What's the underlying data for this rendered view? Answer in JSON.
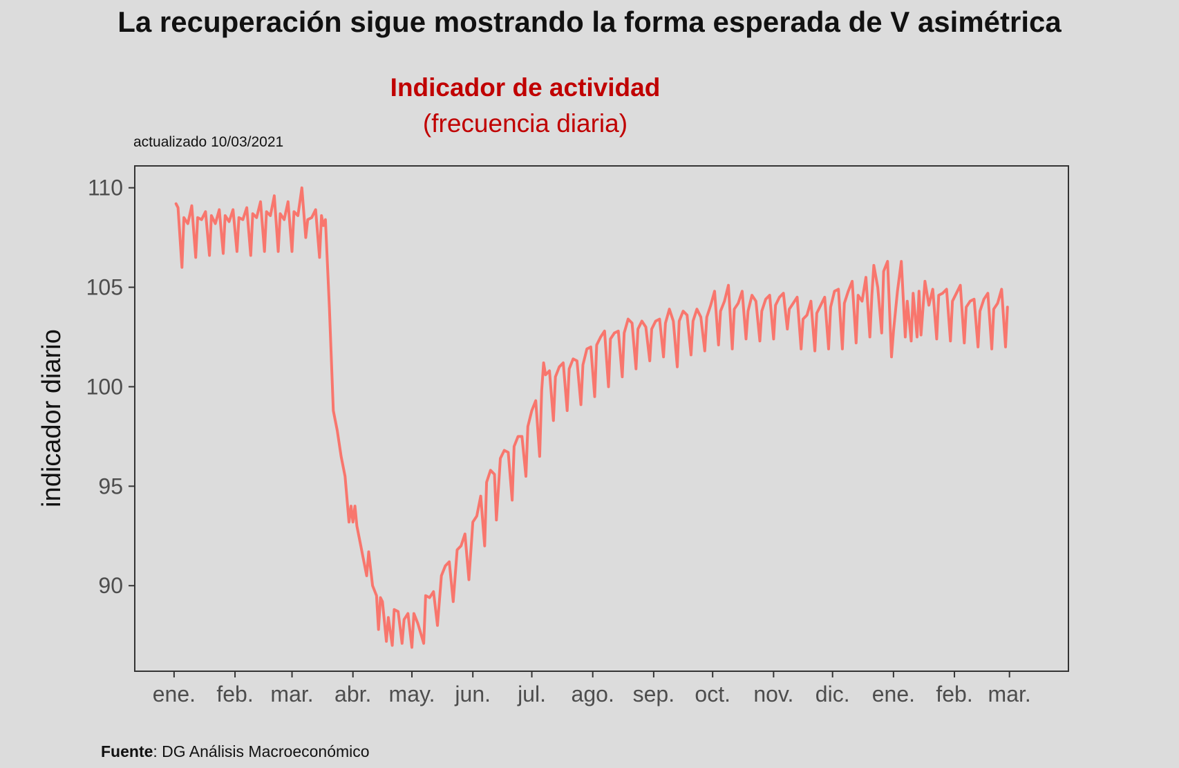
{
  "header": {
    "title": "La recuperación sigue mostrando la forma esperada de V asimétrica"
  },
  "footer": {
    "source_label": "Fuente",
    "source_text": ": DG Análisis Macroeconómico"
  },
  "chart_data": {
    "type": "line",
    "title": "Indicador de actividad",
    "subtitle": "(frecuencia diaria)",
    "note": "actualizado 10/03/2021",
    "xlabel": "",
    "ylabel": "indicador diario",
    "ylim": [
      85.7,
      111.1
    ],
    "yticks": [
      90,
      95,
      100,
      105,
      110
    ],
    "x_ticks": [
      "ene.",
      "feb.",
      "mar.",
      "abr.",
      "may.",
      "jun.",
      "jul.",
      "ago.",
      "sep.",
      "oct.",
      "nov.",
      "dic.",
      "ene.",
      "feb.",
      "mar."
    ],
    "x_tick_dates": [
      "2020-01-01",
      "2020-02-01",
      "2020-03-01",
      "2020-04-01",
      "2020-05-01",
      "2020-06-01",
      "2020-07-01",
      "2020-08-01",
      "2020-09-01",
      "2020-10-01",
      "2020-11-01",
      "2020-12-01",
      "2021-01-01",
      "2021-02-01",
      "2021-03-01"
    ],
    "xlim": [
      "2019-12-12",
      "2021-03-31"
    ],
    "grid": false,
    "legend": "none",
    "colors": {
      "line": "#f8766d",
      "title": "#c00000"
    },
    "series": [
      {
        "values": [
          [
            "2020-01-02",
            109.2
          ],
          [
            "2020-01-03",
            109.0
          ],
          [
            "2020-01-05",
            106.0
          ],
          [
            "2020-01-06",
            108.5
          ],
          [
            "2020-01-08",
            108.2
          ],
          [
            "2020-01-10",
            109.1
          ],
          [
            "2020-01-12",
            106.5
          ],
          [
            "2020-01-13",
            108.5
          ],
          [
            "2020-01-15",
            108.4
          ],
          [
            "2020-01-17",
            108.8
          ],
          [
            "2020-01-19",
            106.6
          ],
          [
            "2020-01-20",
            108.6
          ],
          [
            "2020-01-22",
            108.2
          ],
          [
            "2020-01-24",
            108.9
          ],
          [
            "2020-01-26",
            106.7
          ],
          [
            "2020-01-27",
            108.6
          ],
          [
            "2020-01-29",
            108.3
          ],
          [
            "2020-01-31",
            108.9
          ],
          [
            "2020-02-02",
            106.8
          ],
          [
            "2020-02-03",
            108.5
          ],
          [
            "2020-02-05",
            108.4
          ],
          [
            "2020-02-07",
            109.0
          ],
          [
            "2020-02-09",
            106.6
          ],
          [
            "2020-02-10",
            108.7
          ],
          [
            "2020-02-12",
            108.5
          ],
          [
            "2020-02-14",
            109.3
          ],
          [
            "2020-02-16",
            106.8
          ],
          [
            "2020-02-17",
            108.8
          ],
          [
            "2020-02-19",
            108.6
          ],
          [
            "2020-02-21",
            109.6
          ],
          [
            "2020-02-23",
            106.8
          ],
          [
            "2020-02-24",
            108.7
          ],
          [
            "2020-02-26",
            108.4
          ],
          [
            "2020-02-28",
            109.3
          ],
          [
            "2020-03-01",
            106.8
          ],
          [
            "2020-03-02",
            108.8
          ],
          [
            "2020-03-04",
            108.6
          ],
          [
            "2020-03-06",
            110.0
          ],
          [
            "2020-03-08",
            107.5
          ],
          [
            "2020-03-09",
            108.4
          ],
          [
            "2020-03-11",
            108.5
          ],
          [
            "2020-03-13",
            108.9
          ],
          [
            "2020-03-15",
            106.5
          ],
          [
            "2020-03-16",
            108.6
          ],
          [
            "2020-03-17",
            108.1
          ],
          [
            "2020-03-18",
            108.4
          ],
          [
            "2020-03-20",
            104.0
          ],
          [
            "2020-03-22",
            98.8
          ],
          [
            "2020-03-24",
            97.8
          ],
          [
            "2020-03-26",
            96.5
          ],
          [
            "2020-03-28",
            95.5
          ],
          [
            "2020-03-30",
            93.2
          ],
          [
            "2020-03-31",
            94.0
          ],
          [
            "2020-04-01",
            93.2
          ],
          [
            "2020-04-02",
            94.0
          ],
          [
            "2020-04-03",
            93.0
          ],
          [
            "2020-04-05",
            92.0
          ],
          [
            "2020-04-06",
            91.5
          ],
          [
            "2020-04-08",
            90.5
          ],
          [
            "2020-04-09",
            91.7
          ],
          [
            "2020-04-11",
            90.0
          ],
          [
            "2020-04-13",
            89.5
          ],
          [
            "2020-04-14",
            87.8
          ],
          [
            "2020-04-15",
            89.4
          ],
          [
            "2020-04-16",
            89.2
          ],
          [
            "2020-04-18",
            87.2
          ],
          [
            "2020-04-19",
            88.4
          ],
          [
            "2020-04-21",
            87.0
          ],
          [
            "2020-04-22",
            88.8
          ],
          [
            "2020-04-24",
            88.7
          ],
          [
            "2020-04-26",
            87.1
          ],
          [
            "2020-04-27",
            88.3
          ],
          [
            "2020-04-29",
            88.6
          ],
          [
            "2020-05-01",
            86.9
          ],
          [
            "2020-05-02",
            88.6
          ],
          [
            "2020-05-04",
            88.1
          ],
          [
            "2020-05-07",
            87.1
          ],
          [
            "2020-05-08",
            89.5
          ],
          [
            "2020-05-10",
            89.4
          ],
          [
            "2020-05-12",
            89.7
          ],
          [
            "2020-05-14",
            88.0
          ],
          [
            "2020-05-16",
            90.5
          ],
          [
            "2020-05-18",
            91.0
          ],
          [
            "2020-05-20",
            91.2
          ],
          [
            "2020-05-22",
            89.2
          ],
          [
            "2020-05-24",
            91.8
          ],
          [
            "2020-05-26",
            92.0
          ],
          [
            "2020-05-28",
            92.6
          ],
          [
            "2020-05-30",
            90.3
          ],
          [
            "2020-06-01",
            93.2
          ],
          [
            "2020-06-03",
            93.5
          ],
          [
            "2020-06-05",
            94.5
          ],
          [
            "2020-06-07",
            92.0
          ],
          [
            "2020-06-08",
            95.2
          ],
          [
            "2020-06-10",
            95.8
          ],
          [
            "2020-06-12",
            95.6
          ],
          [
            "2020-06-13",
            93.3
          ],
          [
            "2020-06-15",
            96.4
          ],
          [
            "2020-06-17",
            96.8
          ],
          [
            "2020-06-19",
            96.7
          ],
          [
            "2020-06-21",
            94.3
          ],
          [
            "2020-06-22",
            97.0
          ],
          [
            "2020-06-24",
            97.5
          ],
          [
            "2020-06-26",
            97.5
          ],
          [
            "2020-06-28",
            95.5
          ],
          [
            "2020-06-29",
            98.0
          ],
          [
            "2020-07-01",
            98.8
          ],
          [
            "2020-07-03",
            99.3
          ],
          [
            "2020-07-05",
            96.5
          ],
          [
            "2020-07-06",
            99.8
          ],
          [
            "2020-07-07",
            101.2
          ],
          [
            "2020-07-08",
            100.6
          ],
          [
            "2020-07-10",
            100.8
          ],
          [
            "2020-07-12",
            98.3
          ],
          [
            "2020-07-13",
            100.5
          ],
          [
            "2020-07-15",
            101.0
          ],
          [
            "2020-07-17",
            101.2
          ],
          [
            "2020-07-19",
            98.8
          ],
          [
            "2020-07-20",
            100.9
          ],
          [
            "2020-07-22",
            101.4
          ],
          [
            "2020-07-24",
            101.3
          ],
          [
            "2020-07-26",
            99.1
          ],
          [
            "2020-07-27",
            101.1
          ],
          [
            "2020-07-29",
            101.9
          ],
          [
            "2020-07-31",
            102.0
          ],
          [
            "2020-08-02",
            99.5
          ],
          [
            "2020-08-03",
            102.1
          ],
          [
            "2020-08-05",
            102.5
          ],
          [
            "2020-08-07",
            102.8
          ],
          [
            "2020-08-09",
            100.0
          ],
          [
            "2020-08-10",
            102.4
          ],
          [
            "2020-08-12",
            102.7
          ],
          [
            "2020-08-14",
            102.8
          ],
          [
            "2020-08-16",
            100.5
          ],
          [
            "2020-08-17",
            102.7
          ],
          [
            "2020-08-19",
            103.4
          ],
          [
            "2020-08-21",
            103.2
          ],
          [
            "2020-08-23",
            100.9
          ],
          [
            "2020-08-24",
            102.9
          ],
          [
            "2020-08-26",
            103.3
          ],
          [
            "2020-08-28",
            103.0
          ],
          [
            "2020-08-30",
            101.3
          ],
          [
            "2020-08-31",
            102.9
          ],
          [
            "2020-09-02",
            103.3
          ],
          [
            "2020-09-04",
            103.4
          ],
          [
            "2020-09-06",
            101.5
          ],
          [
            "2020-09-07",
            103.2
          ],
          [
            "2020-09-09",
            103.9
          ],
          [
            "2020-09-11",
            103.3
          ],
          [
            "2020-09-13",
            101.0
          ],
          [
            "2020-09-14",
            103.3
          ],
          [
            "2020-09-16",
            103.8
          ],
          [
            "2020-09-18",
            103.6
          ],
          [
            "2020-09-20",
            101.6
          ],
          [
            "2020-09-21",
            103.3
          ],
          [
            "2020-09-23",
            103.9
          ],
          [
            "2020-09-25",
            103.5
          ],
          [
            "2020-09-27",
            101.8
          ],
          [
            "2020-09-28",
            103.5
          ],
          [
            "2020-09-30",
            104.1
          ],
          [
            "2020-10-02",
            104.8
          ],
          [
            "2020-10-04",
            102.1
          ],
          [
            "2020-10-05",
            103.8
          ],
          [
            "2020-10-07",
            104.3
          ],
          [
            "2020-10-09",
            105.1
          ],
          [
            "2020-10-11",
            101.9
          ],
          [
            "2020-10-12",
            103.9
          ],
          [
            "2020-10-14",
            104.2
          ],
          [
            "2020-10-16",
            104.8
          ],
          [
            "2020-10-18",
            102.4
          ],
          [
            "2020-10-19",
            103.8
          ],
          [
            "2020-10-21",
            104.6
          ],
          [
            "2020-10-23",
            104.3
          ],
          [
            "2020-10-25",
            102.3
          ],
          [
            "2020-10-26",
            103.8
          ],
          [
            "2020-10-28",
            104.4
          ],
          [
            "2020-10-30",
            104.6
          ],
          [
            "2020-11-01",
            102.4
          ],
          [
            "2020-11-02",
            104.1
          ],
          [
            "2020-11-04",
            104.5
          ],
          [
            "2020-11-06",
            104.7
          ],
          [
            "2020-11-08",
            102.9
          ],
          [
            "2020-11-09",
            103.9
          ],
          [
            "2020-11-11",
            104.2
          ],
          [
            "2020-11-13",
            104.5
          ],
          [
            "2020-11-15",
            101.9
          ],
          [
            "2020-11-16",
            103.4
          ],
          [
            "2020-11-18",
            103.6
          ],
          [
            "2020-11-20",
            104.3
          ],
          [
            "2020-11-22",
            101.8
          ],
          [
            "2020-11-23",
            103.7
          ],
          [
            "2020-11-25",
            104.1
          ],
          [
            "2020-11-27",
            104.5
          ],
          [
            "2020-11-29",
            101.9
          ],
          [
            "2020-11-30",
            104.0
          ],
          [
            "2020-12-02",
            104.8
          ],
          [
            "2020-12-04",
            104.9
          ],
          [
            "2020-12-06",
            101.9
          ],
          [
            "2020-12-07",
            104.2
          ],
          [
            "2020-12-09",
            104.8
          ],
          [
            "2020-12-11",
            105.3
          ],
          [
            "2020-12-13",
            102.2
          ],
          [
            "2020-12-14",
            104.6
          ],
          [
            "2020-12-16",
            104.3
          ],
          [
            "2020-12-18",
            105.5
          ],
          [
            "2020-12-20",
            102.5
          ],
          [
            "2020-12-21",
            104.6
          ],
          [
            "2020-12-22",
            106.1
          ],
          [
            "2020-12-24",
            105.0
          ],
          [
            "2020-12-26",
            102.7
          ],
          [
            "2020-12-27",
            105.8
          ],
          [
            "2020-12-29",
            106.3
          ],
          [
            "2020-12-31",
            101.5
          ],
          [
            "2021-01-01",
            102.8
          ],
          [
            "2021-01-03",
            104.8
          ],
          [
            "2021-01-05",
            106.3
          ],
          [
            "2021-01-07",
            102.5
          ],
          [
            "2021-01-08",
            104.3
          ],
          [
            "2021-01-10",
            102.3
          ],
          [
            "2021-01-11",
            104.7
          ],
          [
            "2021-01-13",
            102.5
          ],
          [
            "2021-01-14",
            104.8
          ],
          [
            "2021-01-15",
            102.6
          ],
          [
            "2021-01-17",
            105.3
          ],
          [
            "2021-01-19",
            104.1
          ],
          [
            "2021-01-21",
            104.9
          ],
          [
            "2021-01-23",
            102.4
          ],
          [
            "2021-01-24",
            104.6
          ],
          [
            "2021-01-26",
            104.7
          ],
          [
            "2021-01-28",
            104.9
          ],
          [
            "2021-01-30",
            102.3
          ],
          [
            "2021-01-31",
            104.3
          ],
          [
            "2021-02-02",
            104.7
          ],
          [
            "2021-02-04",
            105.1
          ],
          [
            "2021-02-06",
            102.2
          ],
          [
            "2021-02-07",
            104.0
          ],
          [
            "2021-02-09",
            104.3
          ],
          [
            "2021-02-11",
            104.4
          ],
          [
            "2021-02-13",
            102.0
          ],
          [
            "2021-02-14",
            103.8
          ],
          [
            "2021-02-16",
            104.4
          ],
          [
            "2021-02-18",
            104.7
          ],
          [
            "2021-02-20",
            101.9
          ],
          [
            "2021-02-21",
            103.9
          ],
          [
            "2021-02-23",
            104.2
          ],
          [
            "2021-02-25",
            104.9
          ],
          [
            "2021-02-27",
            102.0
          ],
          [
            "2021-02-28",
            104.0
          ]
        ]
      }
    ]
  }
}
